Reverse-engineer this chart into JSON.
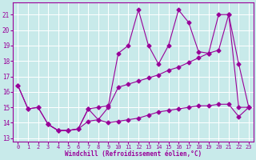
{
  "background_color": "#c8eaea",
  "grid_color": "#ffffff",
  "line_color": "#990099",
  "xlabel": "Windchill (Refroidissement éolien,°C)",
  "xlim": [
    -0.5,
    23.5
  ],
  "ylim": [
    12.8,
    21.8
  ],
  "yticks": [
    13,
    14,
    15,
    16,
    17,
    18,
    19,
    20,
    21
  ],
  "xticks": [
    0,
    1,
    2,
    3,
    4,
    5,
    6,
    7,
    8,
    9,
    10,
    11,
    12,
    13,
    14,
    15,
    16,
    17,
    18,
    19,
    20,
    21,
    22,
    23
  ],
  "series1_x": [
    0,
    1,
    2,
    3,
    4,
    5,
    6,
    7,
    8,
    9,
    10,
    11,
    12,
    13,
    14,
    15,
    16,
    17,
    18,
    19,
    20,
    21,
    22,
    23
  ],
  "series1_y": [
    16.4,
    14.9,
    15.0,
    13.9,
    13.5,
    13.5,
    13.6,
    14.9,
    15.0,
    15.1,
    18.5,
    19.0,
    21.3,
    19.0,
    17.8,
    19.0,
    21.3,
    20.5,
    18.6,
    18.5,
    21.0,
    21.0,
    17.8,
    15.0
  ],
  "series2_x": [
    0,
    1,
    2,
    3,
    4,
    5,
    6,
    7,
    8,
    9,
    10,
    11,
    12,
    13,
    14,
    15,
    16,
    17,
    18,
    19,
    20,
    21,
    22,
    23
  ],
  "series2_y": [
    16.4,
    14.9,
    15.0,
    13.9,
    13.5,
    13.5,
    13.6,
    14.1,
    14.2,
    15.0,
    16.3,
    16.5,
    16.7,
    16.9,
    17.1,
    17.4,
    17.6,
    17.9,
    18.2,
    18.5,
    18.7,
    21.0,
    15.0,
    15.0
  ],
  "series3_x": [
    1,
    2,
    3,
    4,
    5,
    6,
    7,
    8,
    9,
    10,
    11,
    12,
    13,
    14,
    15,
    16,
    17,
    18,
    19,
    20,
    21,
    22,
    23
  ],
  "series3_y": [
    null,
    null,
    13.9,
    13.5,
    13.5,
    13.6,
    14.9,
    14.2,
    14.0,
    14.1,
    14.2,
    14.3,
    14.5,
    14.7,
    14.8,
    14.9,
    15.0,
    15.1,
    15.1,
    15.2,
    15.2,
    14.4,
    15.0
  ]
}
